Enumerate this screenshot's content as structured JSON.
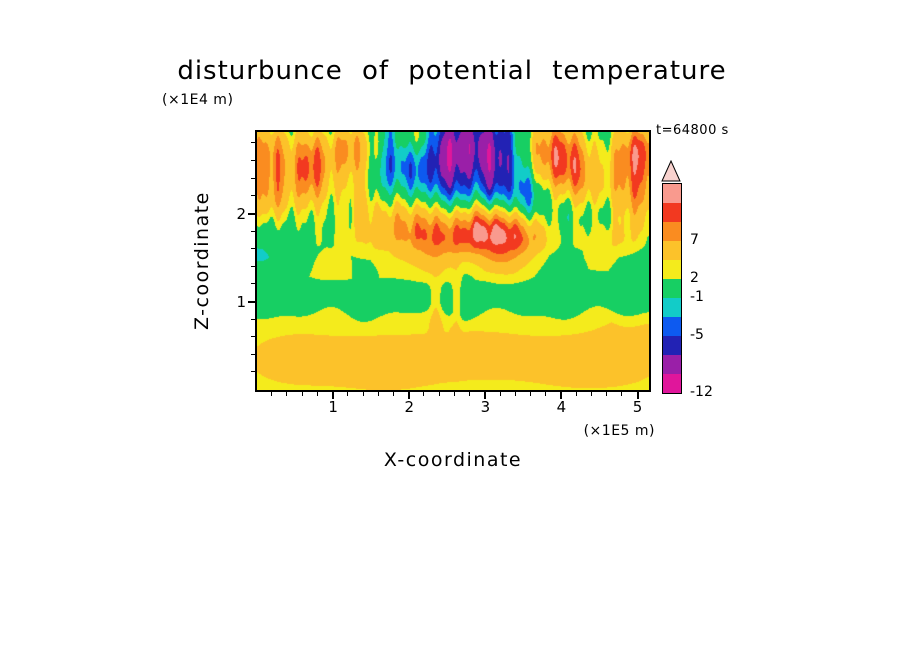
{
  "figure": {
    "title": "disturbunce of potential temperature",
    "time_label": "t=64800 s",
    "y_axis": {
      "title": "Z-coordinate",
      "unit": "(×1E4 m)"
    },
    "x_axis": {
      "title": "X-coordinate",
      "unit": "(×1E5 m)"
    }
  },
  "chart_data": {
    "type": "heatmap",
    "subtype": "filled-contour",
    "title": "disturbunce of potential temperature",
    "xlabel": "X-coordinate",
    "x_unit": "(×1E5 m)",
    "ylabel": "Z-coordinate",
    "y_unit": "(×1E4 m)",
    "annotation": "t=64800 s",
    "x_range": [
      0,
      5.15
    ],
    "z_range": [
      0,
      2.93
    ],
    "x_ticks": [
      1,
      2,
      3,
      4,
      5
    ],
    "z_ticks": [
      1,
      2
    ],
    "minor_tick_step": 0.2,
    "levels": [
      -10,
      -7,
      -5,
      -3,
      -1,
      2,
      4,
      7,
      9,
      11
    ],
    "colors": [
      "#e0169b",
      "#9a1fa8",
      "#2222b4",
      "#0d5af0",
      "#12ccc8",
      "#17cf63",
      "#f4eb1c",
      "#fcc22a",
      "#fa8c20",
      "#f23920",
      "#f99a8e"
    ],
    "overflow_color": "#f8d2ce",
    "colorbar_labels": [
      {
        "text": "7",
        "boundary": 8
      },
      {
        "text": "2",
        "boundary": 6
      },
      {
        "text": "-1",
        "boundary": 5
      },
      {
        "text": "-5",
        "boundary": 3
      },
      {
        "text": "-12",
        "boundary": 0
      }
    ],
    "field": {
      "profile": [
        [
          0,
          2.8
        ],
        [
          0.75,
          2.8
        ],
        [
          0.95,
          0.4
        ],
        [
          1.3,
          0.4
        ],
        [
          1.55,
          -1.8
        ],
        [
          3,
          -1.8
        ]
      ],
      "boundary_wiggle": {
        "a1": 0.06,
        "f1": 5.3,
        "a2": 0.04,
        "f2": 9.1,
        "p2": 1.7
      },
      "striation": {
        "a1": 1.3,
        "wavelength1": 0.26,
        "phase1": 0.5,
        "a2": 0.6,
        "wavelength2": 0.13,
        "phase2": 1.2,
        "z_start": 1.5,
        "z_full": 2.0
      },
      "blobs": [
        [
          0.18,
          2.7,
          0.4,
          0.3,
          9
        ],
        [
          0.72,
          2.4,
          0.3,
          0.28,
          8
        ],
        [
          0.18,
          2.15,
          0.28,
          0.22,
          6
        ],
        [
          1.15,
          2.78,
          0.33,
          0.24,
          8
        ],
        [
          1.45,
          2.15,
          0.22,
          0.35,
          5
        ],
        [
          1.8,
          1.85,
          0.28,
          0.3,
          6
        ],
        [
          2.25,
          1.8,
          0.26,
          0.28,
          7
        ],
        [
          2.7,
          1.85,
          0.28,
          0.24,
          7
        ],
        [
          3.1,
          1.8,
          0.28,
          0.24,
          9.5
        ],
        [
          3.55,
          1.75,
          0.28,
          0.22,
          8
        ],
        [
          3.85,
          2.7,
          0.45,
          0.33,
          11
        ],
        [
          4.3,
          2.35,
          0.28,
          0.3,
          7
        ],
        [
          5.0,
          2.3,
          0.38,
          0.38,
          9.5
        ],
        [
          5.05,
          2.78,
          0.3,
          0.22,
          7
        ],
        [
          4.55,
          1.7,
          0.4,
          0.22,
          5
        ],
        [
          0.95,
          1.6,
          0.45,
          0.28,
          3.5
        ],
        [
          2.05,
          2.88,
          0.22,
          0.2,
          6
        ],
        [
          2.5,
          1.55,
          0.3,
          0.2,
          3
        ],
        [
          3.3,
          1.45,
          0.25,
          0.18,
          2.5
        ],
        [
          0.5,
          0.35,
          0.65,
          0.3,
          1.8
        ],
        [
          1.7,
          0.28,
          0.5,
          0.25,
          1.6
        ],
        [
          2.9,
          0.4,
          0.75,
          0.3,
          1.7
        ],
        [
          4.3,
          0.3,
          0.55,
          0.25,
          1.8
        ],
        [
          5.0,
          0.55,
          0.4,
          0.33,
          1.6
        ],
        [
          2.35,
          0.95,
          0.05,
          0.25,
          2.5
        ],
        [
          2.62,
          1.0,
          0.04,
          0.3,
          2.2
        ],
        [
          2.85,
          2.78,
          0.45,
          0.26,
          -6.5
        ],
        [
          3.3,
          2.5,
          0.2,
          0.38,
          -5.5
        ],
        [
          2.45,
          2.42,
          0.13,
          0.42,
          -4.5
        ],
        [
          1.8,
          2.7,
          0.14,
          0.33,
          -4.5
        ],
        [
          0.45,
          2.5,
          0.12,
          0.38,
          -4
        ],
        [
          0.95,
          2.72,
          0.11,
          0.3,
          -3.5
        ],
        [
          4.5,
          2.5,
          0.2,
          0.38,
          -6
        ],
        [
          3.6,
          2.2,
          0.14,
          0.32,
          -4
        ],
        [
          2.7,
          2.18,
          0.12,
          0.32,
          -3.5
        ],
        [
          4.55,
          1.95,
          0.28,
          0.16,
          -2.5
        ],
        [
          1.6,
          2.28,
          0.11,
          0.28,
          -3.5
        ],
        [
          3.05,
          2.32,
          0.11,
          0.3,
          -3.5
        ],
        [
          2.1,
          2.45,
          0.1,
          0.3,
          -3
        ],
        [
          4.05,
          2.05,
          0.12,
          0.25,
          -2.5
        ]
      ]
    }
  }
}
